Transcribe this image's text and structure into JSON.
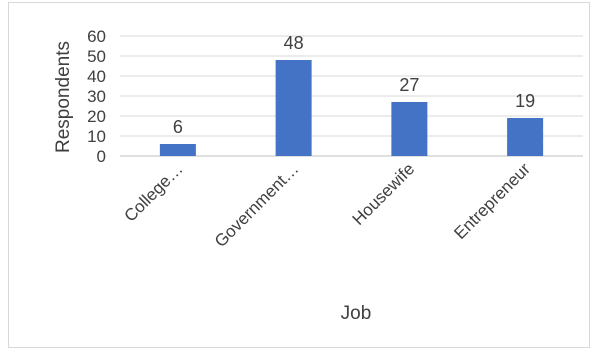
{
  "chart_data": {
    "type": "bar",
    "title": "",
    "xlabel": "Job",
    "ylabel": "Respondents",
    "categories": [
      "College…",
      "Government…",
      "Housewife",
      "Entrepreneur"
    ],
    "values": [
      6,
      48,
      27,
      19
    ],
    "data_labels": [
      "6",
      "48",
      "27",
      "19"
    ],
    "ylim": [
      0,
      60
    ],
    "yticks": [
      0,
      10,
      20,
      30,
      40,
      50,
      60
    ],
    "ytick_labels": [
      "0",
      "10",
      "20",
      "30",
      "40",
      "50",
      "60"
    ],
    "grid": true,
    "legend": "none",
    "colors": {
      "bar": "#4472C4",
      "grid": "#d9d9d9",
      "text": "#404040"
    }
  }
}
